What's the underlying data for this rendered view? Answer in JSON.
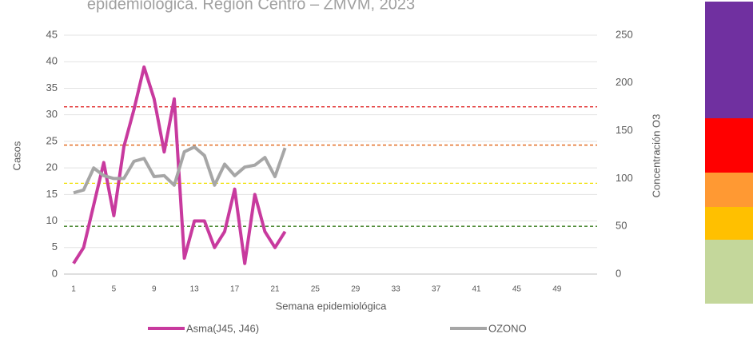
{
  "chart_data": {
    "type": "line",
    "title": "epidemiológica. Región Centro – ZMVM, 2023",
    "x_label": "Semana epidemiológica",
    "y_label": "Casos",
    "y2_label": "Concentración O3",
    "categories": [
      1,
      null,
      null,
      null,
      5,
      null,
      null,
      null,
      9,
      null,
      null,
      null,
      13,
      null,
      null,
      null,
      17,
      null,
      null,
      null,
      21,
      null,
      null,
      null,
      25,
      null,
      null,
      null,
      29,
      null,
      null,
      null,
      33,
      null,
      null,
      null,
      37,
      null,
      null,
      null,
      41,
      null,
      null,
      null,
      45,
      null,
      null,
      null,
      49,
      null,
      null,
      null,
      null
    ],
    "series": [
      {
        "name": "Asma(J45, J46)",
        "color": "#c83a9e",
        "axis": "y",
        "values": [
          2,
          5,
          13,
          21,
          11,
          24,
          31,
          39,
          33,
          23,
          33,
          3,
          10,
          10,
          5,
          8,
          16,
          2,
          15,
          8,
          5,
          8,
          null,
          null,
          null,
          null,
          null,
          null,
          null,
          null,
          null,
          null,
          null,
          null,
          null,
          null,
          null,
          null,
          null,
          null,
          null,
          null,
          null,
          null,
          null,
          null,
          null,
          null,
          null,
          null,
          null,
          null,
          null
        ]
      },
      {
        "name": "OZONO",
        "color": "#a6a6a6",
        "axis": "y2",
        "values": [
          85,
          88,
          111,
          103,
          100,
          100,
          118,
          121,
          102,
          103,
          93,
          128,
          133,
          124,
          93,
          115,
          103,
          112,
          114,
          122,
          102,
          132,
          null,
          null,
          null,
          null,
          null,
          null,
          null,
          null,
          null,
          null,
          null,
          null,
          null,
          null,
          null,
          null,
          null,
          null,
          null,
          null,
          null,
          null,
          null,
          null,
          null,
          null,
          null,
          null,
          null,
          null,
          null
        ]
      }
    ],
    "ylim": [
      0,
      45
    ],
    "yticks": [
      0,
      5,
      10,
      15,
      20,
      25,
      30,
      35,
      40,
      45
    ],
    "y2lim": [
      0,
      250
    ],
    "y2ticks": [
      0,
      50,
      100,
      150,
      200,
      250
    ],
    "grid": true,
    "reference_lines": [
      {
        "value": 50,
        "color": "#3a7d1e",
        "axis": "y2"
      },
      {
        "value": 95,
        "color": "#f0e000",
        "axis": "y2"
      },
      {
        "value": 135,
        "color": "#e06010",
        "axis": "y2"
      },
      {
        "value": 175,
        "color": "#e02020",
        "axis": "y2"
      }
    ]
  }
}
